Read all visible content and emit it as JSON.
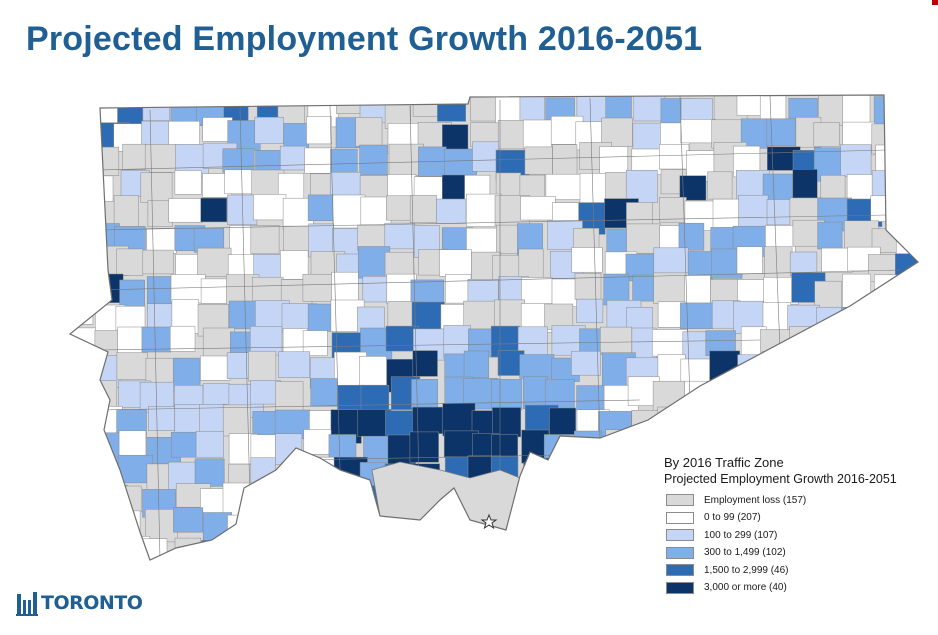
{
  "title": "Projected Employment Growth 2016-2051",
  "legend": {
    "heading": "By 2016 Traffic Zone",
    "subheading": "Projected Employment Growth 2016-2051",
    "classes": [
      {
        "label": "Employment loss (157)",
        "color": "#d9d9d9"
      },
      {
        "label": "0 to 99 (207)",
        "color": "#ffffff"
      },
      {
        "label": "100 to 299 (107)",
        "color": "#c5d5f5"
      },
      {
        "label": "300 to 1,499 (102)",
        "color": "#7faee8"
      },
      {
        "label": "1,500 to 2,999 (46)",
        "color": "#2d6cb5"
      },
      {
        "label": "3,000 or more (40)",
        "color": "#0d3468"
      }
    ]
  },
  "logo": {
    "text": "TORONTO",
    "icon": "toronto-city-hall-icon"
  },
  "map": {
    "icon": "star-marker-icon"
  }
}
